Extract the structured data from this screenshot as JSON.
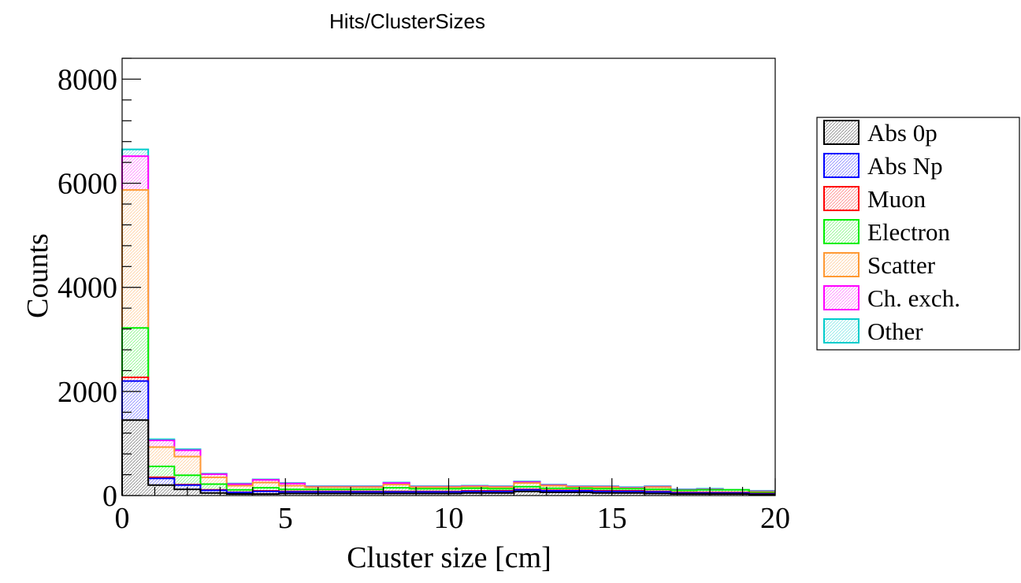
{
  "chart_data": {
    "type": "bar",
    "stacked": true,
    "title": "Hits/ClusterSizes",
    "xlabel": "Cluster size [cm]",
    "ylabel": "Counts",
    "xlim": [
      0,
      20
    ],
    "ylim": [
      0,
      8400
    ],
    "x_ticks": [
      "0",
      "5",
      "10",
      "15",
      "20"
    ],
    "y_ticks": [
      "0",
      "2000",
      "4000",
      "6000",
      "8000"
    ],
    "grid": false,
    "legend_position": "right",
    "bin_width": 0.8,
    "bin_starts": [
      0,
      0.8,
      1.6,
      2.4,
      3.2,
      4.0,
      4.8,
      5.6,
      6.4,
      7.2,
      8.0,
      8.8,
      9.6,
      10.4,
      11.2,
      12.0,
      12.8,
      13.6,
      14.4,
      15.2,
      16.0,
      16.8,
      17.6,
      18.4,
      19.2
    ],
    "series": [
      {
        "name": "Abs 0p",
        "color": "#000000",
        "cumulative": [
          1450,
          200,
          120,
          50,
          30,
          30,
          40,
          40,
          40,
          40,
          40,
          40,
          40,
          50,
          50,
          80,
          60,
          60,
          50,
          50,
          40,
          30,
          30,
          30,
          20
        ]
      },
      {
        "name": "Abs Np",
        "color": "#0000ff",
        "cumulative": [
          2200,
          330,
          200,
          100,
          60,
          80,
          70,
          70,
          70,
          70,
          70,
          70,
          70,
          80,
          80,
          110,
          90,
          90,
          80,
          80,
          70,
          50,
          50,
          50,
          30
        ]
      },
      {
        "name": "Muon",
        "color": "#ff0000",
        "cumulative": [
          2270,
          350,
          210,
          110,
          65,
          90,
          80,
          80,
          80,
          80,
          80,
          80,
          80,
          90,
          90,
          120,
          100,
          100,
          90,
          90,
          80,
          60,
          60,
          60,
          40
        ]
      },
      {
        "name": "Electron",
        "color": "#00ee00",
        "cumulative": [
          3220,
          560,
          390,
          220,
          110,
          150,
          120,
          120,
          120,
          120,
          150,
          130,
          130,
          140,
          130,
          170,
          140,
          140,
          130,
          130,
          120,
          100,
          110,
          110,
          60
        ]
      },
      {
        "name": "Scatter",
        "color": "#ff9933",
        "cumulative": [
          5870,
          930,
          750,
          350,
          190,
          250,
          190,
          160,
          160,
          160,
          210,
          160,
          160,
          170,
          160,
          240,
          190,
          160,
          160,
          140,
          160,
          100,
          110,
          90,
          70
        ]
      },
      {
        "name": "Ch. exch.",
        "color": "#ff00ff",
        "cumulative": [
          6520,
          1060,
          870,
          410,
          220,
          300,
          230,
          170,
          170,
          170,
          240,
          170,
          170,
          180,
          170,
          260,
          200,
          170,
          170,
          150,
          170,
          110,
          120,
          100,
          80
        ]
      },
      {
        "name": "Other",
        "color": "#00cccc",
        "cumulative": [
          6650,
          1080,
          890,
          420,
          230,
          310,
          240,
          180,
          180,
          180,
          250,
          180,
          180,
          190,
          180,
          270,
          210,
          180,
          180,
          160,
          180,
          120,
          130,
          110,
          90
        ]
      }
    ]
  }
}
